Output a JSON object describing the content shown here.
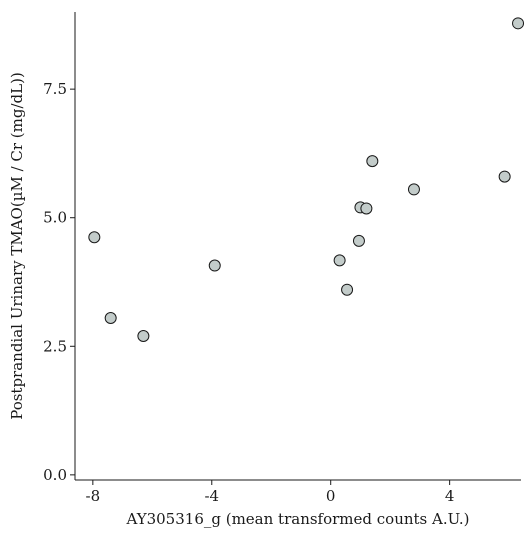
{
  "chart_data": {
    "type": "scatter",
    "title": "",
    "xlabel": "AY305316_g (mean transformed counts A.U.)",
    "ylabel": "Postprandial Urinary TMAO(µM / Cr (mg/dL))",
    "xlim": [
      -8.6,
      6.4
    ],
    "ylim": [
      -0.1,
      9.0
    ],
    "x_ticks": [
      -8,
      -4,
      0,
      4
    ],
    "x_tick_labels": [
      "-8",
      "-4",
      "0",
      "4"
    ],
    "y_ticks": [
      0.0,
      2.5,
      5.0,
      7.5
    ],
    "y_tick_labels": [
      "0.0",
      "2.5",
      "5.0",
      "7.5"
    ],
    "grid": false,
    "legend": "none",
    "marker_fill": "#c3ccca",
    "marker_edge": "#1a1a1a",
    "series": [
      {
        "x": [
          -7.95,
          -7.4,
          -6.3,
          -3.9,
          0.3,
          0.55,
          0.95,
          1.0,
          1.2,
          1.4,
          2.8,
          5.85,
          6.3
        ],
        "y": [
          4.62,
          3.05,
          2.7,
          4.07,
          4.17,
          3.6,
          4.55,
          5.2,
          5.18,
          6.1,
          5.55,
          5.8,
          8.78
        ]
      }
    ]
  }
}
